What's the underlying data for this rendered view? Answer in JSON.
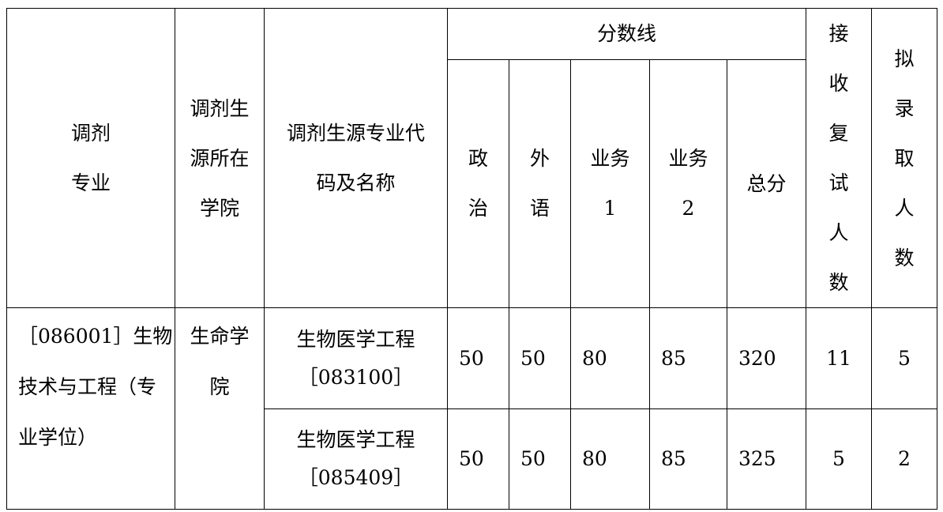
{
  "headers": {
    "major": "调剂\n专业",
    "college": "调剂生\n源所在\n学院",
    "source": "调剂生源专业代\n码及名称",
    "score_line": "分数线",
    "politics": "政\n治",
    "foreign": "外\n语",
    "subject1": "业务\n1",
    "subject2": "业务\n2",
    "total": "总分",
    "retest": "接\n收\n复\n试\n人\n数",
    "admit": "拟\n录\n取\n人\n数"
  },
  "rows": [
    {
      "major": "［086001］生物\n技术与工程（专\n业学位）",
      "college": "生命学\n院",
      "source": "生物医学工程\n［083100］",
      "politics": "50",
      "foreign": "50",
      "subject1": "80",
      "subject2": "85",
      "total": "320",
      "retest": "11",
      "admit": "5"
    },
    {
      "source": "生物医学工程\n［085409］",
      "politics": "50",
      "foreign": "50",
      "subject1": "80",
      "subject2": "85",
      "total": "325",
      "retest": "5",
      "admit": "2"
    }
  ]
}
